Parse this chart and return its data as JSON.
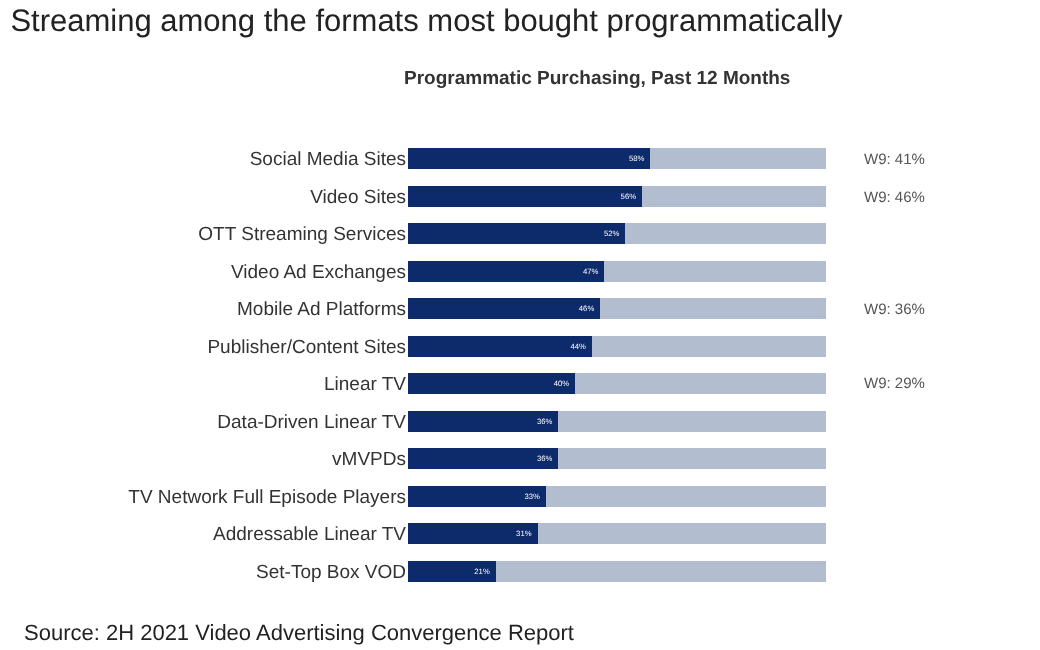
{
  "chart_data": {
    "type": "bar",
    "orientation": "horizontal",
    "stacked": true,
    "xlim": [
      0,
      100
    ],
    "tick_labels": "y",
    "title": "Streaming among the formats most bought programmatically",
    "subtitle": "Programmatic Purchasing, Past 12 Months",
    "categories": [
      "Social Media Sites",
      "Video Sites",
      "OTT Streaming Services",
      "Video Ad Exchanges",
      "Mobile Ad Platforms",
      "Publisher/Content Sites",
      "Linear TV",
      "Data-Driven Linear TV",
      "vMVPDs",
      "TV Network Full Episode Players",
      "Addressable Linear TV",
      "Set-Top Box VOD"
    ],
    "series": [
      {
        "color": "#0d2a6b",
        "values": [
          58,
          56,
          52,
          47,
          46,
          44,
          40,
          36,
          36,
          33,
          31,
          21
        ],
        "value_labels": [
          "58%",
          "56%",
          "52%",
          "47%",
          "46%",
          "44%",
          "40%",
          "36%",
          "36%",
          "33%",
          "31%",
          "21%"
        ]
      },
      {
        "color": "#b3bdd0",
        "values": [
          42,
          44,
          48,
          53,
          54,
          56,
          60,
          64,
          64,
          67,
          69,
          79
        ]
      }
    ],
    "annotations": [
      "W9: 41%",
      "W9: 46%",
      "W9: 36%",
      "W9: 29%",
      "Source: 2H 2021 Video Advertising Convergence Report"
    ]
  }
}
